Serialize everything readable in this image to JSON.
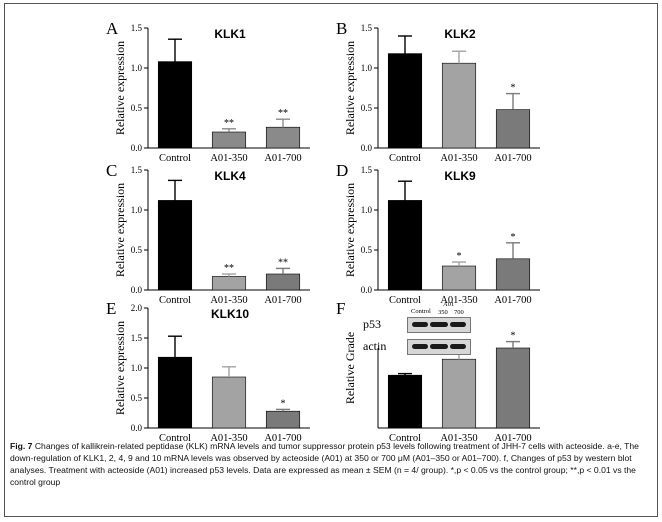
{
  "chart_data": [
    {
      "type": "bar",
      "panel_letter": "A",
      "title": "KLK1",
      "ylabel": "Relative expression",
      "categories": [
        "Control",
        "A01-350",
        "A01-700"
      ],
      "values": [
        1.08,
        0.2,
        0.26
      ],
      "errors": [
        0.28,
        0.04,
        0.1
      ],
      "significance": [
        "",
        "**",
        "**"
      ],
      "yticks": [
        "0.0",
        "0.5",
        "1.0",
        "1.5"
      ],
      "ylim": [
        0,
        1.5
      ],
      "bar_colors": [
        "#000000",
        "#8a8a8a",
        "#8a8a8a"
      ]
    },
    {
      "type": "bar",
      "panel_letter": "B",
      "title": "KLK2",
      "ylabel": "Relative expression",
      "categories": [
        "Control",
        "A01-350",
        "A01-700"
      ],
      "values": [
        1.18,
        1.06,
        0.48
      ],
      "errors": [
        0.22,
        0.15,
        0.2
      ],
      "significance": [
        "",
        "",
        "*"
      ],
      "yticks": [
        "0.0",
        "0.5",
        "1.0",
        "1.5"
      ],
      "ylim": [
        0,
        1.5
      ],
      "bar_colors": [
        "#000000",
        "#a3a3a3",
        "#7a7a7a"
      ]
    },
    {
      "type": "bar",
      "panel_letter": "C",
      "title": "KLK4",
      "ylabel": "Relative expression",
      "categories": [
        "Control",
        "A01-350",
        "A01-700"
      ],
      "values": [
        1.12,
        0.17,
        0.2
      ],
      "errors": [
        0.25,
        0.03,
        0.07
      ],
      "significance": [
        "",
        "**",
        "**"
      ],
      "yticks": [
        "0.0",
        "0.5",
        "1.0",
        "1.5"
      ],
      "ylim": [
        0,
        1.5
      ],
      "bar_colors": [
        "#000000",
        "#a3a3a3",
        "#7a7a7a"
      ]
    },
    {
      "type": "bar",
      "panel_letter": "D",
      "title": "KLK9",
      "ylabel": "Relative expression",
      "categories": [
        "Control",
        "A01-350",
        "A01-700"
      ],
      "values": [
        1.12,
        0.3,
        0.39
      ],
      "errors": [
        0.24,
        0.05,
        0.2
      ],
      "significance": [
        "",
        "*",
        "*"
      ],
      "yticks": [
        "0.0",
        "0.5",
        "1.0",
        "1.5"
      ],
      "ylim": [
        0,
        1.5
      ],
      "bar_colors": [
        "#000000",
        "#a3a3a3",
        "#7a7a7a"
      ]
    },
    {
      "type": "bar",
      "panel_letter": "E",
      "title": "KLK10",
      "ylabel": "Relative expression",
      "categories": [
        "Control",
        "A01-350",
        "A01-700"
      ],
      "values": [
        1.18,
        0.85,
        0.28
      ],
      "errors": [
        0.35,
        0.17,
        0.03
      ],
      "significance": [
        "",
        "",
        "*"
      ],
      "yticks": [
        "0.0",
        "0.5",
        "1.0",
        "1.5",
        "2.0"
      ],
      "ylim": [
        0,
        2.0
      ],
      "bar_colors": [
        "#000000",
        "#a3a3a3",
        "#7a7a7a"
      ]
    },
    {
      "type": "bar",
      "panel_letter": "F",
      "title": "",
      "ylabel": "Relative Grade",
      "categories": [
        "Control",
        "A01-350",
        "A01-700"
      ],
      "values": [
        0.66,
        0.86,
        1.0
      ],
      "errors": [
        0.02,
        0.1,
        0.08
      ],
      "significance": [
        "",
        "",
        "*"
      ],
      "yticks": [],
      "ylim": [
        0,
        1.5
      ],
      "bar_colors": [
        "#000000",
        "#a3a3a3",
        "#7a7a7a"
      ]
    }
  ],
  "blot": {
    "row_labels": [
      "p53",
      "actin"
    ],
    "lane_labels": [
      "Control",
      "350",
      "700"
    ],
    "group_label": "A01"
  },
  "caption": {
    "figure_label": "Fig. 7",
    "text": "Changes of kallikrein-related peptidase (KLK) mRNA levels and tumor suppressor protein p53 levels following treatment of JHH-7 cells with acteoside. a-e, The down-regulation of KLK1, 2, 4, 9 and 10 mRNA levels was observed by acteoside (A01) at 350 or 700 μM (A01–350 or A01–700). f, Changes of p53 by western blot analyses. Treatment with acteoside (A01) increased p53 levels. Data are expressed as mean ± SEM (n = 4/ group). *,p < 0.05 vs the control group; **,p < 0.01 vs the control group"
  }
}
